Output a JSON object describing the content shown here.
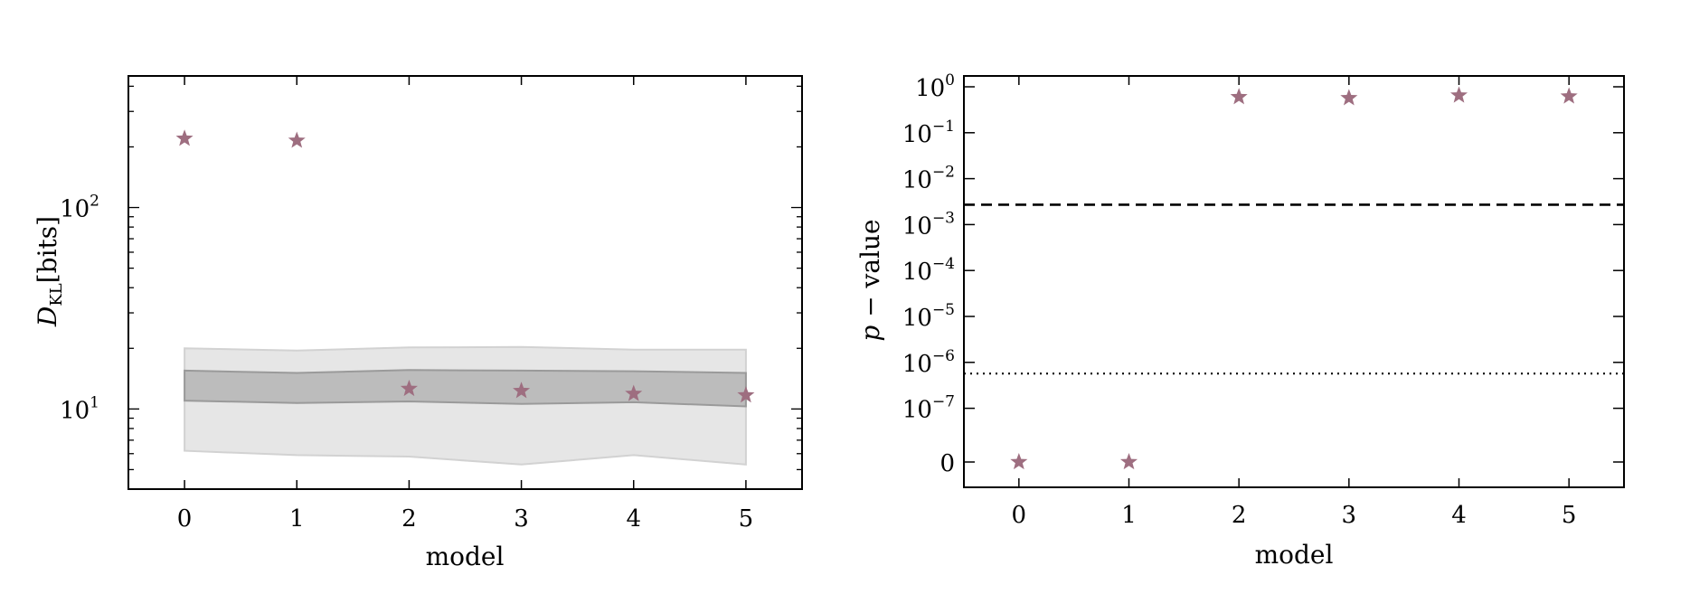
{
  "chart_data": [
    {
      "type": "scatter",
      "title": "",
      "xlabel": "model",
      "ylabel": "D_KL [bits]",
      "ylabel_parts": {
        "main": "D",
        "sub": "KL",
        "unit": "[bits]"
      },
      "y_scale": "log",
      "xlim": [
        -0.5,
        5.5
      ],
      "ylim": [
        4,
        450
      ],
      "x_ticks": [
        0,
        1,
        2,
        3,
        4,
        5
      ],
      "y_ticks": [
        {
          "base": "10",
          "exp": "1",
          "value": 10
        },
        {
          "base": "10",
          "exp": "2",
          "value": 100
        }
      ],
      "marker": "star",
      "marker_color": "#9e6e80",
      "x": [
        0,
        1,
        2,
        3,
        4,
        5
      ],
      "y": [
        220,
        215,
        12.6,
        12.3,
        11.9,
        11.7
      ],
      "bands": [
        {
          "kind": "outer",
          "color": "#e6e6e6",
          "x": [
            0,
            1,
            2,
            3,
            4,
            5
          ],
          "lower": [
            6.2,
            5.9,
            5.8,
            5.3,
            5.9,
            5.3
          ],
          "upper": [
            20,
            19.5,
            20.2,
            20.3,
            19.7,
            19.7
          ]
        },
        {
          "kind": "inner",
          "color": "#bcbcbc",
          "x": [
            0,
            1,
            2,
            3,
            4,
            5
          ],
          "lower": [
            11,
            10.7,
            10.9,
            10.6,
            10.8,
            10.3
          ],
          "upper": [
            15.5,
            15.1,
            15.6,
            15.5,
            15.4,
            15.1
          ]
        }
      ],
      "grid": false
    },
    {
      "type": "scatter",
      "title": "",
      "xlabel": "model",
      "ylabel": "p − value",
      "ylabel_parts": {
        "italic": "p",
        "rest": " − value"
      },
      "y_scale": "log",
      "xlim": [
        -0.5,
        5.5
      ],
      "x_ticks": [
        0,
        1,
        2,
        3,
        4,
        5
      ],
      "y_ticks": [
        {
          "base": "10",
          "exp": "0",
          "value": 1
        },
        {
          "base": "10",
          "exp": "−1",
          "value": 0.1
        },
        {
          "base": "10",
          "exp": "−2",
          "value": 0.01
        },
        {
          "base": "10",
          "exp": "−3",
          "value": 0.001
        },
        {
          "base": "10",
          "exp": "−4",
          "value": 0.0001
        },
        {
          "base": "10",
          "exp": "−5",
          "value": 1e-05
        },
        {
          "base": "10",
          "exp": "−6",
          "value": 1e-06
        },
        {
          "base": "10",
          "exp": "−7",
          "value": 1e-07
        },
        {
          "base": "0",
          "exp": "",
          "value": 0
        }
      ],
      "marker": "star",
      "marker_color": "#9e6e80",
      "x": [
        0,
        1,
        2,
        3,
        4,
        5
      ],
      "y": [
        0,
        0,
        0.6,
        0.57,
        0.65,
        0.62
      ],
      "hlines": [
        {
          "y": 0.0027,
          "style": "dashed"
        },
        {
          "y": 5.7e-07,
          "style": "dotted"
        }
      ],
      "grid": false
    }
  ]
}
